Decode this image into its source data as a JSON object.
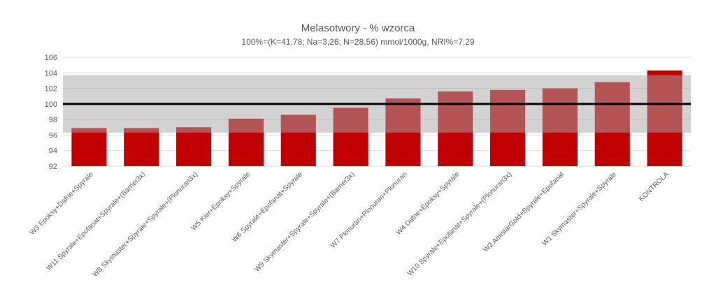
{
  "chart_data": {
    "type": "bar",
    "title": "Melasotwory - % wzorca",
    "subtitle": "100%=(K=41,78; Na=3,26; N=28,56) mmol/1000g, NRI%=7,29",
    "categories": [
      "W3 Epoksy+Dafne+Spyrale",
      "W11 Spyrale+Epofanat+Spyrale+(Barrier3x)",
      "W8 Skymaster+Spyrale+Spyrale+(Plonuran3x)",
      "W5 Kier+Epoksy+Spyrale",
      "W6 Spyrale+Epofanat+Spyrale",
      "W9 Skymaster+Spyrale+Spyrale+(Barrier3x)",
      "W7 Plonuran+Plonuran+Plonuran",
      "W4 Dafne+Epoksy+Spyrale",
      "W10 Spyrale+Epofanat+Spyrale+(Plonuran3x)",
      "W2 AmistarGold+Spyrale+Epofanat",
      "W1 Skymaster+Spyrale+Spyrale",
      "KONTROLA"
    ],
    "values": [
      96.9,
      96.9,
      97.0,
      98.1,
      98.6,
      99.5,
      100.7,
      101.6,
      101.8,
      102.0,
      102.8,
      104.3
    ],
    "xlabel": "",
    "ylabel": "",
    "ylim": [
      92,
      106
    ],
    "yticks": [
      92,
      94,
      96,
      98,
      100,
      102,
      104,
      106
    ],
    "reference_line": 100,
    "band": [
      96.3,
      103.7
    ],
    "grid": true,
    "legend": "none",
    "colors": {
      "bar": "#c00000",
      "band": "#a6a6a6",
      "reference_line": "#000000",
      "grid": "#d9d9d9",
      "text": "#595959"
    }
  }
}
